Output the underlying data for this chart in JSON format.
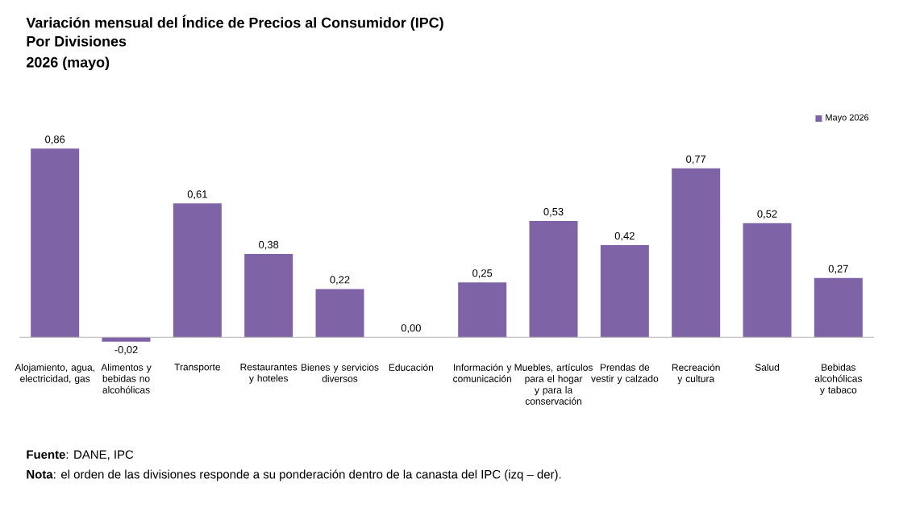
{
  "chart_data": {
    "type": "bar",
    "title": "Variación mensual del Índice de Precios al Consumidor (IPC)",
    "subtitle": "Por Divisiones",
    "categories": [
      "Alojamiento, agua, electricidad, gas",
      "Alimentos y bebidas no alcohólicas",
      "Transporte",
      "Restaurantes y hoteles",
      "Bienes y servicios diversos",
      "Educación",
      "Información y comunicación",
      "Muebles, artículos para el hogar y para la conservación",
      "Prendas de vestir y calzado",
      "Recreación y cultura",
      "Salud",
      "Bebidas alcohólicas y tabaco"
    ],
    "series": [
      {
        "name": "Mayo 2026",
        "color": "#7e64a6",
        "values": [
          0.86,
          -0.02,
          0.61,
          0.38,
          0.22,
          0.0,
          0.25,
          0.53,
          0.42,
          0.77,
          0.52,
          0.27
        ],
        "value_labels": [
          "0,86",
          "-0,02",
          "0,61",
          "0,38",
          "0,22",
          "0,00",
          "0,25",
          "0,53",
          "0,42",
          "0,77",
          "0,52",
          "0,27"
        ]
      }
    ],
    "legend": "top right",
    "annotations": [
      "2026 (mayo)",
      "**Fuente**: DANE, IPC",
      "**Nota**: el orden de las divisiones responde a su ponderación dentro de la canasta del IPC (izq – der)."
    ]
  }
}
